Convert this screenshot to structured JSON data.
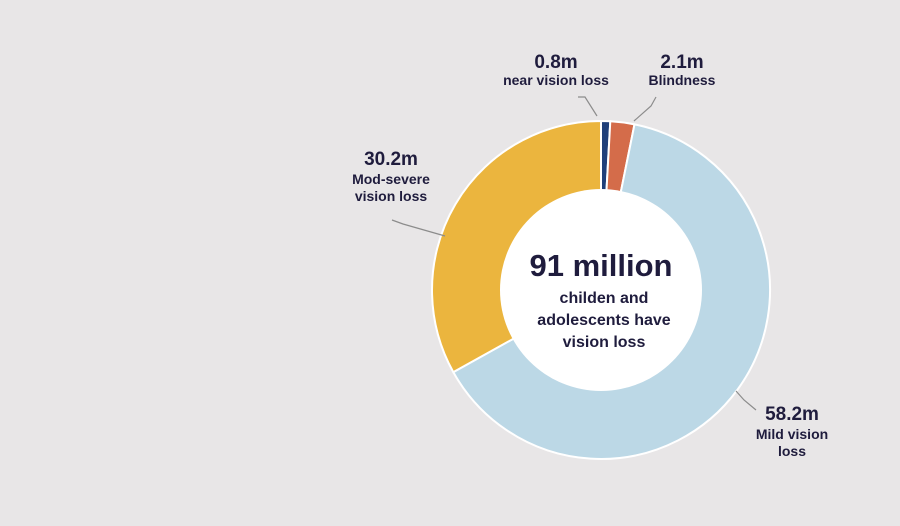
{
  "chart_data": {
    "type": "pie",
    "center_label": {
      "value": "91 million",
      "lines": [
        "childen and",
        "adolescents have",
        "vision loss"
      ]
    },
    "slices": [
      {
        "value_label": "0.8m",
        "label_lines": [
          "near vision loss"
        ],
        "value": 0.8,
        "color": "#1f3f7a"
      },
      {
        "value_label": "2.1m",
        "label_lines": [
          "Blindness"
        ],
        "value": 2.1,
        "color": "#d46c4a"
      },
      {
        "value_label": "58.2m",
        "label_lines": [
          "Mild vision",
          "loss"
        ],
        "value": 58.2,
        "color": "#bcd8e6"
      },
      {
        "value_label": "30.2m",
        "label_lines": [
          "Mod-severe",
          "vision loss"
        ],
        "value": 30.2,
        "color": "#ebb53e"
      }
    ]
  }
}
